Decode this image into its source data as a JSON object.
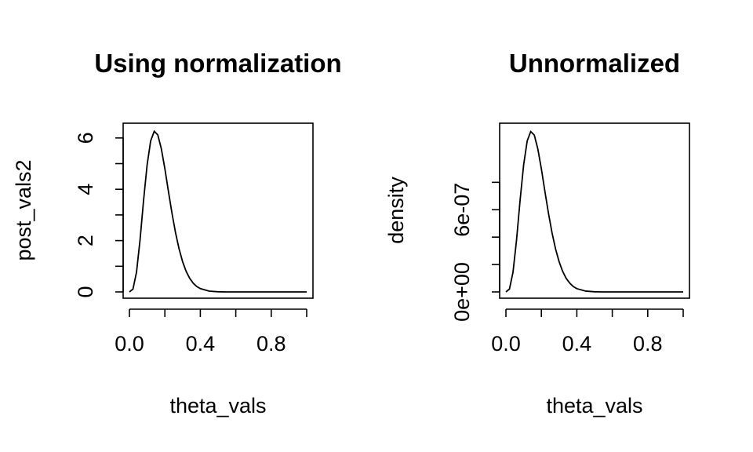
{
  "chart_data": [
    {
      "type": "line",
      "title": "Using normalization",
      "xlabel": "theta_vals",
      "ylabel": "post_vals2",
      "xlim": [
        0,
        1
      ],
      "ylim": [
        0,
        6.3
      ],
      "x_ticks": [
        0.0,
        0.2,
        0.4,
        0.6,
        0.8,
        1.0
      ],
      "x_tick_labels": [
        "0.0",
        "0.4",
        "0.8"
      ],
      "x_tick_label_values": [
        0.0,
        0.4,
        0.8
      ],
      "y_ticks": [
        0,
        1,
        2,
        3,
        4,
        5,
        6
      ],
      "y_tick_labels": [
        "0",
        "2",
        "4",
        "6"
      ],
      "y_tick_label_values": [
        0,
        2,
        4,
        6
      ],
      "grid": false,
      "series": [
        {
          "x": [
            0.0,
            0.02,
            0.04,
            0.06,
            0.08,
            0.1,
            0.12,
            0.14,
            0.16,
            0.18,
            0.2,
            0.22,
            0.24,
            0.26,
            0.28,
            0.3,
            0.32,
            0.34,
            0.36,
            0.38,
            0.4,
            0.45,
            0.5,
            0.55,
            0.6,
            0.7,
            0.8,
            0.9,
            1.0
          ],
          "values": [
            0.0,
            0.11,
            0.77,
            2.03,
            3.58,
            4.96,
            5.89,
            6.26,
            6.12,
            5.58,
            4.8,
            3.92,
            3.07,
            2.31,
            1.68,
            1.18,
            0.8,
            0.53,
            0.34,
            0.21,
            0.13,
            0.03,
            0.006,
            0.001,
            0.0,
            0.0,
            0.0,
            0.0,
            0.0
          ]
        }
      ]
    },
    {
      "type": "line",
      "title": "Unnormalized",
      "xlabel": "theta_vals",
      "ylabel": "density",
      "xlim": [
        0,
        1
      ],
      "ylim": [
        0,
        1.18e-06
      ],
      "x_ticks": [
        0.0,
        0.2,
        0.4,
        0.6,
        0.8,
        1.0
      ],
      "x_tick_labels": [
        "0.0",
        "0.4",
        "0.8"
      ],
      "x_tick_label_values": [
        0.0,
        0.4,
        0.8
      ],
      "y_ticks": [
        0,
        2e-07,
        4e-07,
        6e-07,
        8e-07
      ],
      "y_tick_labels": [
        "0e+00",
        "6e-07"
      ],
      "y_tick_label_values": [
        0,
        6e-07
      ],
      "grid": false,
      "series": [
        {
          "x": [
            0.0,
            0.02,
            0.04,
            0.06,
            0.08,
            0.1,
            0.12,
            0.14,
            0.16,
            0.18,
            0.2,
            0.22,
            0.24,
            0.26,
            0.28,
            0.3,
            0.32,
            0.34,
            0.36,
            0.38,
            0.4,
            0.45,
            0.5,
            0.55,
            0.6,
            0.7,
            0.8,
            0.9,
            1.0
          ],
          "values": [
            0.0,
            2.1e-08,
            1.44e-07,
            3.8e-07,
            6.7e-07,
            9.28e-07,
            1.102e-06,
            1.171e-06,
            1.145e-06,
            1.044e-06,
            8.98e-07,
            7.33e-07,
            5.74e-07,
            4.32e-07,
            3.14e-07,
            2.21e-07,
            1.5e-07,
            9.9e-08,
            6.4e-08,
            3.9e-08,
            2.4e-08,
            6e-09,
            1e-09,
            0.0,
            0.0,
            0.0,
            0.0,
            0.0,
            0.0
          ]
        }
      ]
    }
  ]
}
